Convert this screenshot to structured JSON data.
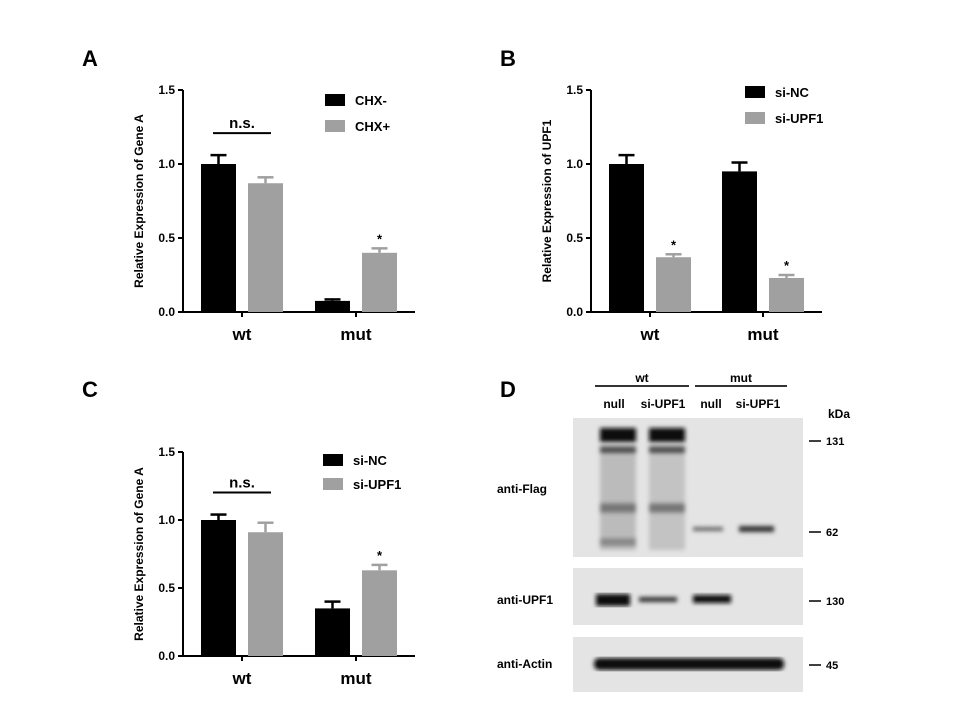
{
  "chart_data": [
    {
      "panel": "A",
      "type": "bar",
      "categories": [
        "wt",
        "mut"
      ],
      "ylabel": "Relative Expression of Gene A",
      "ylim": [
        0,
        1.5
      ],
      "yticks": [
        "0.0",
        "0.5",
        "1.0",
        "1.5"
      ],
      "legend_position": "top-right",
      "series": [
        {
          "name": "CHX-",
          "color": "#000000",
          "values": [
            1.0,
            0.075
          ],
          "errors": [
            0.06,
            0.01
          ]
        },
        {
          "name": "CHX+",
          "color": "#a0a0a0",
          "values": [
            0.87,
            0.4
          ],
          "errors": [
            0.04,
            0.03
          ]
        }
      ],
      "annotations": [
        {
          "text": "n.s.",
          "category": "wt"
        },
        {
          "text": "*",
          "category": "mut",
          "series": 1
        }
      ]
    },
    {
      "panel": "B",
      "type": "bar",
      "categories": [
        "wt",
        "mut"
      ],
      "ylabel": "Relative Expression of UPF1",
      "ylim": [
        0,
        1.5
      ],
      "yticks": [
        "0.0",
        "0.5",
        "1.0",
        "1.5"
      ],
      "legend_position": "top-right",
      "series": [
        {
          "name": "si-NC",
          "color": "#000000",
          "values": [
            1.0,
            0.95
          ],
          "errors": [
            0.06,
            0.06
          ]
        },
        {
          "name": "si-UPF1",
          "color": "#a0a0a0",
          "values": [
            0.37,
            0.23
          ],
          "errors": [
            0.02,
            0.02
          ]
        }
      ],
      "annotations": [
        {
          "text": "*",
          "category": "wt",
          "series": 1
        },
        {
          "text": "*",
          "category": "mut",
          "series": 1
        }
      ]
    },
    {
      "panel": "C",
      "type": "bar",
      "categories": [
        "wt",
        "mut"
      ],
      "ylabel": "Relative Expression of Gene A",
      "ylim": [
        0,
        1.5
      ],
      "yticks": [
        "0.0",
        "0.5",
        "1.0",
        "1.5"
      ],
      "legend_position": "top-right",
      "series": [
        {
          "name": "si-NC",
          "color": "#000000",
          "values": [
            1.0,
            0.35
          ],
          "errors": [
            0.04,
            0.05
          ]
        },
        {
          "name": "si-UPF1",
          "color": "#a0a0a0",
          "values": [
            0.91,
            0.63
          ],
          "errors": [
            0.07,
            0.04
          ]
        }
      ],
      "annotations": [
        {
          "text": "n.s.",
          "category": "wt"
        },
        {
          "text": "*",
          "category": "mut",
          "series": 1
        }
      ]
    }
  ],
  "blot": {
    "panel": "D",
    "groups": [
      "wt",
      "mut"
    ],
    "lanes": [
      "null",
      "si-UPF1",
      "null",
      "si-UPF1"
    ],
    "unit": "kDa",
    "rows": [
      {
        "label": "anti-Flag",
        "markers": [
          "131",
          "62"
        ]
      },
      {
        "label": "anti-UPF1",
        "markers": [
          "130"
        ]
      },
      {
        "label": "anti-Actin",
        "markers": [
          "45"
        ]
      }
    ]
  }
}
